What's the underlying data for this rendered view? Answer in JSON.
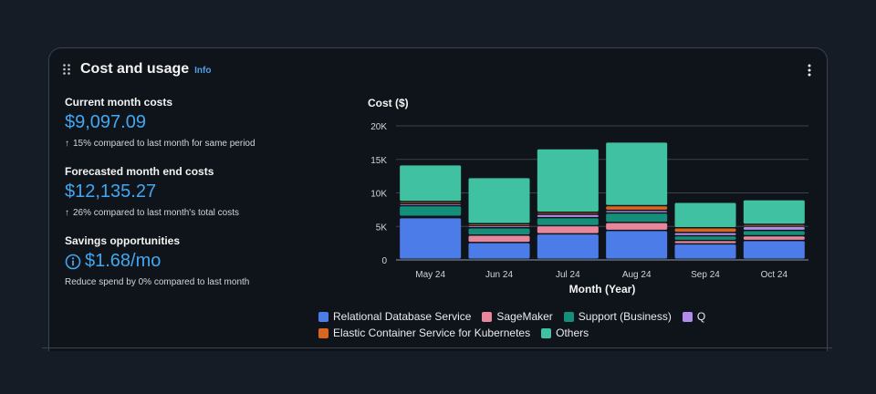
{
  "widget": {
    "title": "Cost and usage",
    "info_link": "Info",
    "drag_icon": "drag-handle-icon",
    "menu_icon": "more-vertical-icon"
  },
  "metrics": {
    "current": {
      "label": "Current month costs",
      "value": "$9,097.09",
      "note": "15% compared to last month for same period",
      "icon": "arrow-up-icon"
    },
    "forecast": {
      "label": "Forecasted month end costs",
      "value": "$12,135.27",
      "note": "26% compared to last month's total costs",
      "icon": "arrow-up-icon"
    },
    "savings": {
      "label": "Savings opportunities",
      "value": "$1.68/mo",
      "note": "Reduce spend by 0% compared to last month",
      "icon": "info-circle-icon"
    }
  },
  "colors": {
    "accent": "#42a7f0",
    "background": "#0f141b"
  },
  "chart_data": {
    "type": "bar",
    "stacked": true,
    "ylabel": "Cost ($)",
    "xlabel": "Month (Year)",
    "ylim": [
      0,
      20000
    ],
    "yticks": [
      0,
      5000,
      10000,
      15000,
      20000
    ],
    "ytick_labels": [
      "0",
      "5K",
      "10K",
      "15K",
      "20K"
    ],
    "grid": true,
    "legend_position": "bottom",
    "categories": [
      "May 24",
      "Jun 24",
      "Jul 24",
      "Aug 24",
      "Sep 24",
      "Oct 24"
    ],
    "series": [
      {
        "name": "Relational Database Service",
        "color": "#4c7ce8",
        "values": [
          6200,
          2500,
          3800,
          4300,
          2300,
          2800
        ]
      },
      {
        "name": "SageMaker",
        "color": "#e8869c",
        "values": [
          200,
          1100,
          1200,
          1200,
          500,
          700
        ]
      },
      {
        "name": "Support (Business)",
        "color": "#148f7a",
        "values": [
          1600,
          1100,
          1200,
          1400,
          700,
          800
        ]
      },
      {
        "name": "Q",
        "color": "#b48be8",
        "values": [
          300,
          300,
          500,
          400,
          500,
          600
        ]
      },
      {
        "name": "Elastic Container Service for Kubernetes",
        "color": "#d8661f",
        "values": [
          300,
          300,
          300,
          700,
          700,
          300
        ]
      },
      {
        "name": "Others",
        "color": "#3fc1a2",
        "values": [
          5500,
          6900,
          9500,
          9500,
          3800,
          3700
        ]
      }
    ]
  }
}
